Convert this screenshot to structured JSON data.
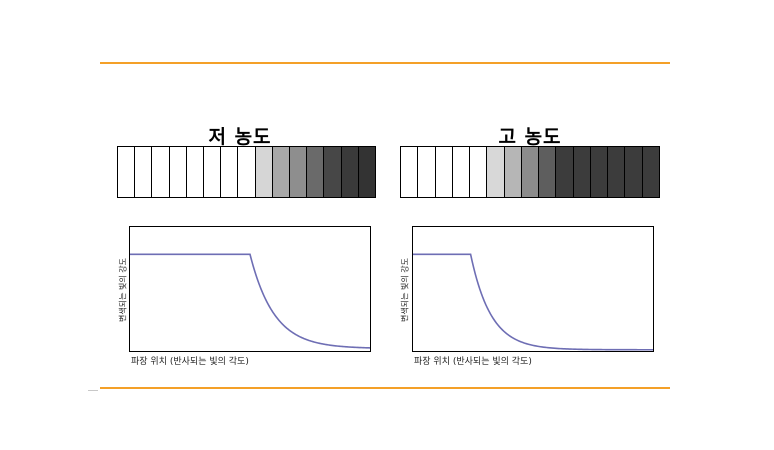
{
  "colors": {
    "rule": "#f4a028",
    "curve": "#6e6eb4",
    "cell_outline": "#000000"
  },
  "panels": [
    {
      "title": "저 농도",
      "strip_shades": [
        "#ffffff",
        "#ffffff",
        "#ffffff",
        "#ffffff",
        "#ffffff",
        "#ffffff",
        "#ffffff",
        "#ffffff",
        "#d6d6d6",
        "#a8a8a8",
        "#8e8e8e",
        "#6a6a6a",
        "#474747",
        "#3a3a3a",
        "#333333"
      ],
      "axis": {
        "ylabel": "변색되는 빛의 강도",
        "xlabel": "파장 위치 (반사되는 빛의 각도)"
      },
      "curve": {
        "plateau_level": 0.78,
        "drop_position": 0.5,
        "decay_rate": 5.0,
        "end_level": 0.02
      }
    },
    {
      "title": "고 농도",
      "strip_shades": [
        "#ffffff",
        "#ffffff",
        "#ffffff",
        "#ffffff",
        "#ffffff",
        "#d8d8d8",
        "#b6b6b6",
        "#8c8c8c",
        "#5e5e5e",
        "#3c3c3c",
        "#3c3c3c",
        "#3c3c3c",
        "#3c3c3c",
        "#3c3c3c",
        "#3c3c3c"
      ],
      "axis": {
        "ylabel": "변색되는 빛의 강도",
        "xlabel": "파장 위치 (반사되는 빛의 각도)"
      },
      "curve": {
        "plateau_level": 0.78,
        "drop_position": 0.24,
        "decay_rate": 9.0,
        "end_level": 0.01
      }
    }
  ]
}
